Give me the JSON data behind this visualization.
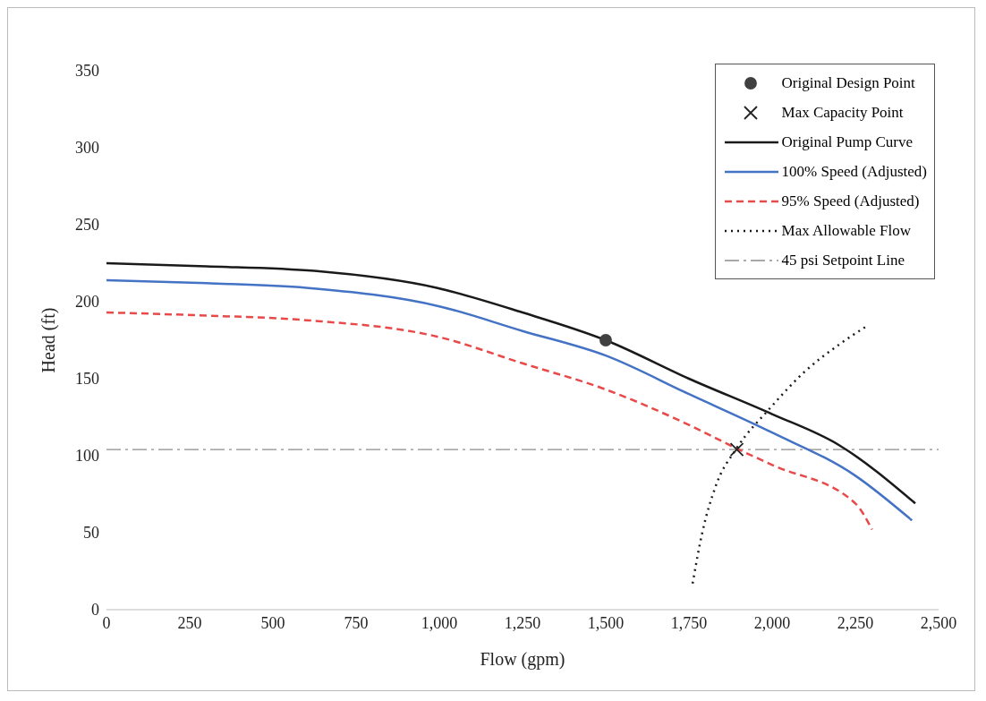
{
  "chart_data": {
    "type": "line",
    "xlabel": "Flow (gpm)",
    "ylabel": "Head (ft)",
    "xlim": [
      0,
      2500
    ],
    "xticks": [
      0,
      250,
      500,
      750,
      {
        "value": 1000,
        "label": "1,000"
      },
      {
        "value": 1250,
        "label": "1,250"
      },
      {
        "value": 1500,
        "label": "1,500"
      },
      {
        "value": 1750,
        "label": "1,750"
      },
      {
        "value": 2000,
        "label": "2,000"
      },
      {
        "value": 2250,
        "label": "2,250"
      },
      {
        "value": 2500,
        "label": "2,500"
      }
    ],
    "ylim": [
      0,
      350
    ],
    "yticks": [
      0,
      50,
      100,
      150,
      200,
      250,
      300,
      350
    ],
    "grid": false,
    "legend": "top right",
    "series": [
      {
        "name": "Original Design Point",
        "type": "scatter",
        "marker": "circle",
        "color": "#404040",
        "x": [
          1500
        ],
        "values": [
          175
        ]
      },
      {
        "name": "Max Capacity Point",
        "type": "scatter",
        "marker": "cross",
        "color": "#222222",
        "x": [
          1894
        ],
        "values": [
          104
        ]
      },
      {
        "name": "Original Pump Curve",
        "type": "line",
        "line_style": "solid",
        "color": "#1a1a1a",
        "x": [
          0,
          300,
          625,
          992,
          1250,
          1500,
          1750,
          2000,
          2200,
          2430
        ],
        "values": [
          225,
          223,
          220,
          209,
          193,
          175,
          150,
          127,
          107,
          69
        ]
      },
      {
        "name": "100% Speed (Adjusted)",
        "type": "line",
        "line_style": "solid",
        "color": "#4472c4",
        "x": [
          0,
          300,
          600,
          1000,
          1250,
          1500,
          1750,
          2000,
          2250,
          2420
        ],
        "values": [
          214,
          212,
          209,
          197,
          181,
          165,
          140,
          115,
          87,
          58
        ]
      },
      {
        "name": "95% Speed (Adjusted)",
        "type": "line",
        "line_style": "dashed",
        "color": "#e84a4a",
        "x": [
          0,
          300,
          600,
          1000,
          1250,
          1500,
          1750,
          1900,
          2000,
          2250,
          2300
        ],
        "values": [
          193,
          191,
          188,
          177,
          160,
          143,
          120,
          104,
          94,
          69,
          52
        ]
      },
      {
        "name": "Max Allowable Flow",
        "type": "line",
        "line_style": "dotted",
        "color": "#1a1a1a",
        "x": [
          1761,
          1790,
          1830,
          1894,
          1990,
          2100,
          2200,
          2283
        ],
        "values": [
          17,
          50,
          80,
          105,
          130,
          155,
          172,
          184
        ]
      }
    ],
    "ref_lines": [
      {
        "axis": "y",
        "value": 104,
        "label": "45 psi Setpoint Line",
        "color": "#8c8c8c",
        "line_style": "dashdot"
      }
    ]
  }
}
